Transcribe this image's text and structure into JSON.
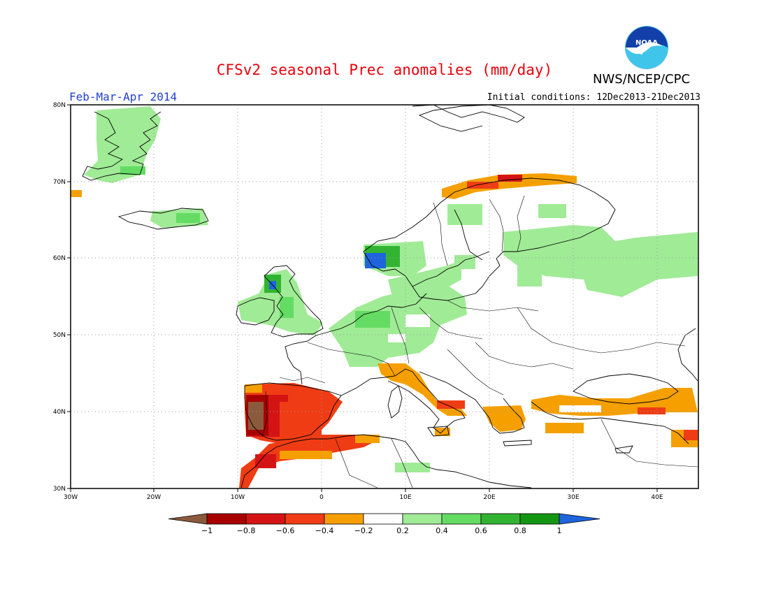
{
  "header": {
    "title": "CFSv2 seasonal Prec anomalies (mm/day)",
    "agency": "NWS/NCEP/CPC",
    "logo_text": "NOAA",
    "season": "Feb-Mar-Apr 2014",
    "initial_conditions": "Initial conditions: 12Dec2013-21Dec2013"
  },
  "axes": {
    "x_ticks": [
      "30W",
      "20W",
      "10W",
      "0",
      "10E",
      "20E",
      "30E",
      "40E"
    ],
    "y_ticks": [
      "80N",
      "70N",
      "60N",
      "50N",
      "40N",
      "30N"
    ]
  },
  "colorbar": {
    "labels": [
      "-1",
      "-0.8",
      "-0.6",
      "-0.4",
      "-0.2",
      "0.2",
      "0.4",
      "0.6",
      "0.8",
      "1"
    ],
    "colors": [
      "#8b5a3c",
      "#a80000",
      "#d41414",
      "#f03c14",
      "#f5a000",
      "#ffffff",
      "#a0eb96",
      "#64dc64",
      "#32b432",
      "#149614",
      "#1e64dc"
    ]
  },
  "colors": {
    "title": "#e8000b",
    "season": "#1f3fd0",
    "land_outline": "#000000"
  },
  "chart_data": {
    "type": "heatmap",
    "title": "CFSv2 seasonal Prec anomalies (mm/day)",
    "units": "mm/day",
    "lon_range": [
      -30,
      45
    ],
    "lat_range": [
      30,
      80
    ],
    "anomaly_regions": [
      {
        "region": "Greenland east coast",
        "lon": [
          -27,
          -21
        ],
        "lat": [
          69,
          79
        ],
        "level": "0.2 to 0.4"
      },
      {
        "region": "Iceland",
        "lon": [
          -22,
          -14
        ],
        "lat": [
          64,
          66
        ],
        "level": "0.2 to 0.6"
      },
      {
        "region": "Western Scotland",
        "lon": [
          -7,
          -5
        ],
        "lat": [
          56,
          58
        ],
        "level": "0.6 to 1"
      },
      {
        "region": "Ireland and Britain",
        "lon": [
          -10,
          0
        ],
        "lat": [
          51,
          58
        ],
        "level": "0.2 to 0.6"
      },
      {
        "region": "Western Norway",
        "lon": [
          5,
          8
        ],
        "lat": [
          59,
          62
        ],
        "level": "0.6 to >1"
      },
      {
        "region": "Central and northern Europe",
        "lon": [
          0,
          18
        ],
        "lat": [
          46,
          60
        ],
        "level": "0.2 to 0.6"
      },
      {
        "region": "Finland and western Russia",
        "lon": [
          20,
          45
        ],
        "lat": [
          55,
          66
        ],
        "level": "0.2 to 0.4"
      },
      {
        "region": "Northern Norway coast",
        "lon": [
          15,
          30
        ],
        "lat": [
          69,
          71
        ],
        "level": "-0.6 to -0.2"
      },
      {
        "region": "Iberian Peninsula",
        "lon": [
          -9,
          3
        ],
        "lat": [
          36,
          43
        ],
        "level": "-1 to -0.4"
      },
      {
        "region": "Morocco and northern Algeria",
        "lon": [
          -10,
          5
        ],
        "lat": [
          30,
          36
        ],
        "level": "-0.8 to -0.2"
      },
      {
        "region": "Italy",
        "lon": [
          8,
          18
        ],
        "lat": [
          38,
          44
        ],
        "level": "-0.6 to -0.2"
      },
      {
        "region": "Greece",
        "lon": [
          19,
          24
        ],
        "lat": [
          36,
          40
        ],
        "level": "-0.4 to -0.2"
      },
      {
        "region": "Turkey",
        "lon": [
          25,
          45
        ],
        "lat": [
          36,
          42
        ],
        "level": "-0.6 to -0.2"
      }
    ]
  }
}
